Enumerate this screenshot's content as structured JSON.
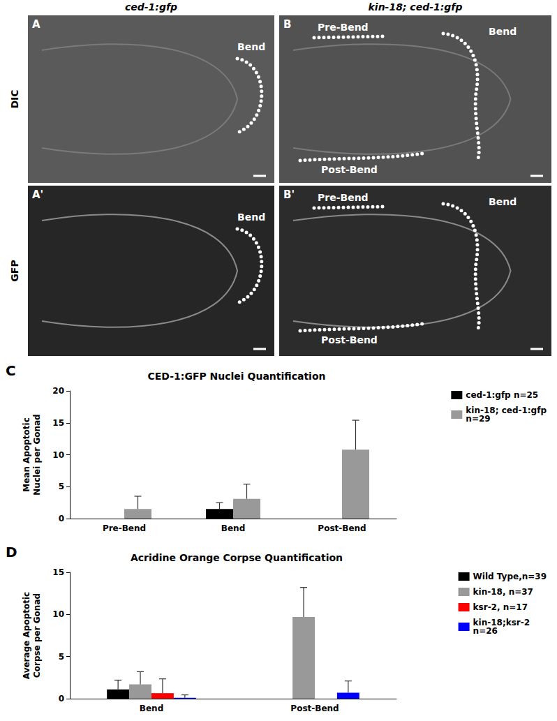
{
  "panels": {
    "columns": [
      "ced-1:gfp",
      "kin-18; ced-1:gfp"
    ],
    "rows": [
      "DIC",
      "GFP"
    ],
    "letters": [
      [
        "A",
        "B"
      ],
      [
        "A'",
        "B'"
      ]
    ],
    "labels": [
      [
        "Bend"
      ],
      [
        "Pre-Bend",
        "Bend",
        "Post-Bend"
      ]
    ]
  },
  "chart_data": [
    {
      "type": "bar",
      "title": "CED-1:GFP Nuclei Quantification",
      "annotations": [
        "C"
      ],
      "y_label": "Mean Apoptotic\nNuclei per Gonad",
      "categories": [
        "Pre-Bend",
        "Bend",
        "Post-Bend"
      ],
      "series": [
        {
          "name": "ced-1:gfp n=25",
          "color": "#000000",
          "values": [
            0,
            1.5,
            0
          ],
          "errors": [
            0,
            1.0,
            0
          ]
        },
        {
          "name": "kin-18; ced-1:gfp\nn=29",
          "color": "#999999",
          "values": [
            1.5,
            3.1,
            10.8
          ],
          "errors": [
            2.0,
            2.3,
            4.6
          ]
        }
      ],
      "ylim": [
        0,
        20
      ],
      "yticks": [
        0,
        5,
        10,
        15,
        20
      ],
      "grid": false,
      "legend": "right"
    },
    {
      "type": "bar",
      "title": "Acridine Orange Corpse Quantification",
      "annotations": [
        "D"
      ],
      "y_label": "Average Apoptotic\nCorpse per Gonad",
      "categories": [
        "Bend",
        "Post-Bend"
      ],
      "series": [
        {
          "name": "Wild Type,n=39",
          "color": "#000000",
          "values": [
            1.1,
            0
          ],
          "errors": [
            1.1,
            0
          ]
        },
        {
          "name": "kin-18, n=37",
          "color": "#999999",
          "values": [
            1.7,
            9.7
          ],
          "errors": [
            1.5,
            3.5
          ]
        },
        {
          "name": "ksr-2, n=17",
          "color": "#ff0000",
          "values": [
            0.65,
            0
          ],
          "errors": [
            1.7,
            0
          ]
        },
        {
          "name": "kin-18;ksr-2\nn=26",
          "color": "#0000ff",
          "values": [
            0.1,
            0.7
          ],
          "errors": [
            0.35,
            1.4
          ]
        }
      ],
      "ylim": [
        0,
        15
      ],
      "yticks": [
        0,
        5,
        10,
        15
      ],
      "grid": false,
      "legend": "right"
    }
  ]
}
